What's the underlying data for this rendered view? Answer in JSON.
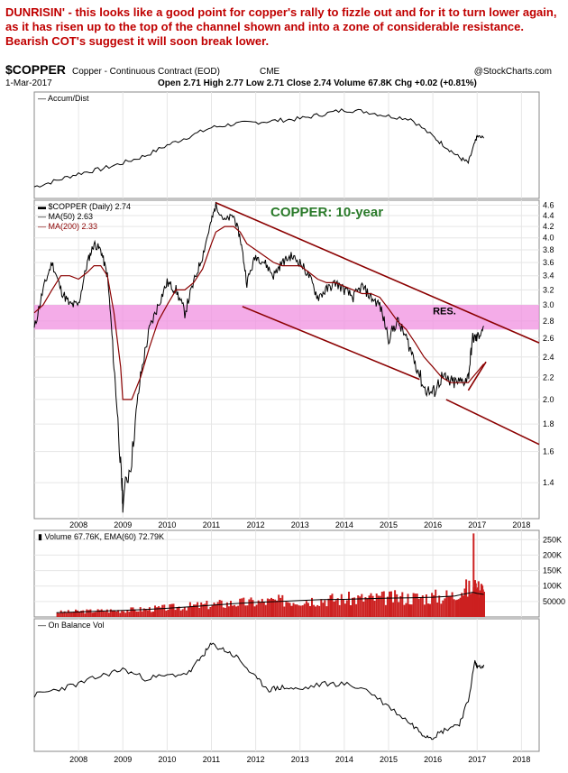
{
  "commentary": "DUNRISIN' - this looks like a good point for copper's rally to fizzle out and for it to turn lower again, as it has risen up to the top of the channel shown and into a zone of considerable resistance. Bearish COT's suggest it will soon break lower.",
  "header": {
    "symbol": "$COPPER",
    "name": "Copper - Continuous Contract (EOD)",
    "exchange": "CME",
    "source": "@StockCharts.com",
    "date": "1-Mar-2017",
    "ohlc": "Open 2.71  High 2.77  Low 2.71  Close 2.74  Volume 67.8K  Chg +0.02 (+0.81%)"
  },
  "colors": {
    "price": "#000000",
    "ma50": "#000000",
    "ma200": "#8b0000",
    "channel": "#8b0000",
    "resistance_zone": "#f090e0",
    "volume": "#cc2020",
    "title": "#2a7a2a",
    "grid": "#e6e6e6"
  },
  "chart_data": [
    {
      "type": "line",
      "panel": "accum_dist",
      "title": "Accum/Dist",
      "x": [
        2007.0,
        2007.5,
        2008.0,
        2008.5,
        2009.0,
        2009.5,
        2010.0,
        2010.5,
        2011.0,
        2011.5,
        2012.0,
        2012.5,
        2013.0,
        2013.5,
        2014.0,
        2014.5,
        2015.0,
        2015.5,
        2016.0,
        2016.3,
        2016.6,
        2016.8,
        2016.95,
        2017.0,
        2017.15
      ],
      "values": [
        0.05,
        0.12,
        0.2,
        0.25,
        0.32,
        0.4,
        0.52,
        0.62,
        0.72,
        0.76,
        0.78,
        0.8,
        0.82,
        0.87,
        0.92,
        0.9,
        0.85,
        0.82,
        0.62,
        0.5,
        0.38,
        0.32,
        0.55,
        0.62,
        0.6
      ],
      "grid": true
    },
    {
      "type": "line",
      "panel": "price",
      "title": "COPPER: 10-year",
      "legend": [
        "$COPPER (Daily) 2.74",
        "MA(50) 2.63",
        "MA(200) 2.33"
      ],
      "legend_position": "top-left",
      "yscale": "log",
      "ylim": [
        1.2,
        4.7
      ],
      "yticks": [
        1.4,
        1.6,
        1.8,
        2.0,
        2.2,
        2.4,
        2.6,
        2.8,
        3.0,
        3.2,
        3.4,
        3.6,
        3.8,
        4.0,
        4.2,
        4.4,
        4.6
      ],
      "xlim": [
        2007.0,
        2018.4
      ],
      "xticks": [
        "2008",
        "2009",
        "2010",
        "2011",
        "2012",
        "2013",
        "2014",
        "2015",
        "2016",
        "2017",
        "2018"
      ],
      "x": [
        2007.0,
        2007.2,
        2007.4,
        2007.6,
        2007.8,
        2008.0,
        2008.2,
        2008.35,
        2008.5,
        2008.65,
        2008.8,
        2008.95,
        2009.0,
        2009.2,
        2009.4,
        2009.6,
        2009.8,
        2010.0,
        2010.2,
        2010.4,
        2010.6,
        2010.8,
        2011.0,
        2011.1,
        2011.3,
        2011.5,
        2011.65,
        2011.8,
        2012.0,
        2012.2,
        2012.4,
        2012.6,
        2012.8,
        2013.0,
        2013.2,
        2013.4,
        2013.6,
        2013.8,
        2014.0,
        2014.2,
        2014.4,
        2014.6,
        2014.8,
        2015.0,
        2015.2,
        2015.4,
        2015.6,
        2015.8,
        2016.0,
        2016.2,
        2016.4,
        2016.6,
        2016.8,
        2016.9,
        2017.0,
        2017.15
      ],
      "series": [
        {
          "name": "$COPPER",
          "values": [
            2.7,
            3.2,
            3.6,
            3.2,
            3.0,
            3.0,
            3.6,
            3.9,
            3.8,
            3.4,
            2.3,
            1.5,
            1.3,
            1.55,
            2.2,
            2.7,
            3.0,
            3.3,
            3.2,
            2.9,
            3.3,
            3.7,
            4.3,
            4.6,
            4.3,
            4.4,
            4.0,
            3.3,
            3.7,
            3.6,
            3.4,
            3.6,
            3.7,
            3.6,
            3.4,
            3.1,
            3.2,
            3.3,
            3.2,
            3.1,
            3.25,
            3.1,
            3.0,
            2.6,
            2.8,
            2.6,
            2.35,
            2.1,
            2.05,
            2.2,
            2.15,
            2.15,
            2.2,
            2.6,
            2.6,
            2.74
          ]
        },
        {
          "name": "MA(200)",
          "values": [
            2.9,
            3.0,
            3.2,
            3.4,
            3.4,
            3.35,
            3.45,
            3.55,
            3.55,
            3.4,
            2.9,
            2.3,
            2.0,
            2.0,
            2.2,
            2.5,
            2.8,
            3.0,
            3.2,
            3.2,
            3.3,
            3.5,
            3.9,
            4.1,
            4.2,
            4.2,
            4.1,
            3.9,
            3.8,
            3.7,
            3.6,
            3.55,
            3.55,
            3.55,
            3.45,
            3.35,
            3.3,
            3.3,
            3.25,
            3.2,
            3.15,
            3.15,
            3.1,
            2.95,
            2.8,
            2.7,
            2.55,
            2.4,
            2.3,
            2.2,
            2.15,
            2.15,
            2.15,
            2.2,
            2.25,
            2.33
          ]
        }
      ],
      "annotations": [
        {
          "text": "RES.",
          "x": 2016.0,
          "y": 2.88
        },
        {
          "text": "resistance zone",
          "y_range": [
            2.7,
            3.0
          ]
        },
        {
          "text": "upper channel line",
          "from": [
            2011.1,
            4.65
          ],
          "to": [
            2018.4,
            2.55
          ]
        },
        {
          "text": "lower channel line",
          "from": [
            2011.7,
            2.98
          ],
          "to": [
            2015.7,
            2.18
          ]
        },
        {
          "text": "lower channel extension",
          "from": [
            2016.3,
            2.0
          ],
          "to": [
            2018.4,
            1.65
          ]
        },
        {
          "text": "short uptrend line",
          "from": [
            2016.8,
            2.08
          ],
          "to": [
            2017.2,
            2.35
          ]
        }
      ],
      "grid": true
    },
    {
      "type": "bar",
      "panel": "volume",
      "title": "Volume 67.76K, EMA(60) 72.79K",
      "yticks": [
        "250K",
        "200K",
        "150K",
        "100K",
        "50000"
      ],
      "ylim": [
        0,
        280000
      ],
      "x": [
        2007.5,
        2008.0,
        2008.5,
        2009.0,
        2009.5,
        2010.0,
        2010.5,
        2011.0,
        2011.5,
        2012.0,
        2012.5,
        2013.0,
        2013.5,
        2014.0,
        2014.5,
        2015.0,
        2015.5,
        2016.0,
        2016.5,
        2016.9,
        2017.0,
        2017.15
      ],
      "values": [
        15000,
        18000,
        20000,
        22000,
        25000,
        30000,
        35000,
        40000,
        45000,
        48000,
        52000,
        55000,
        57000,
        58000,
        60000,
        62000,
        63000,
        65000,
        70000,
        270000,
        120000,
        67760
      ],
      "ema": [
        14000,
        16000,
        19000,
        21000,
        24000,
        28000,
        33000,
        38000,
        43000,
        47000,
        50000,
        53000,
        56000,
        57000,
        59000,
        61000,
        62000,
        64000,
        68000,
        80000,
        76000,
        72790
      ],
      "grid": true
    },
    {
      "type": "line",
      "panel": "obv",
      "title": "On Balance Vol",
      "x": [
        2007.0,
        2007.5,
        2008.0,
        2008.5,
        2009.0,
        2009.5,
        2010.0,
        2010.5,
        2010.8,
        2011.0,
        2011.3,
        2011.6,
        2012.0,
        2012.3,
        2012.6,
        2013.0,
        2013.5,
        2014.0,
        2014.5,
        2015.0,
        2015.5,
        2015.8,
        2016.0,
        2016.3,
        2016.6,
        2016.8,
        2016.95,
        2017.0,
        2017.15
      ],
      "values": [
        0.45,
        0.5,
        0.55,
        0.62,
        0.68,
        0.6,
        0.62,
        0.65,
        0.8,
        0.9,
        0.85,
        0.78,
        0.6,
        0.5,
        0.52,
        0.5,
        0.55,
        0.55,
        0.5,
        0.35,
        0.2,
        0.1,
        0.08,
        0.15,
        0.2,
        0.4,
        0.75,
        0.7,
        0.72
      ],
      "grid": true
    }
  ]
}
